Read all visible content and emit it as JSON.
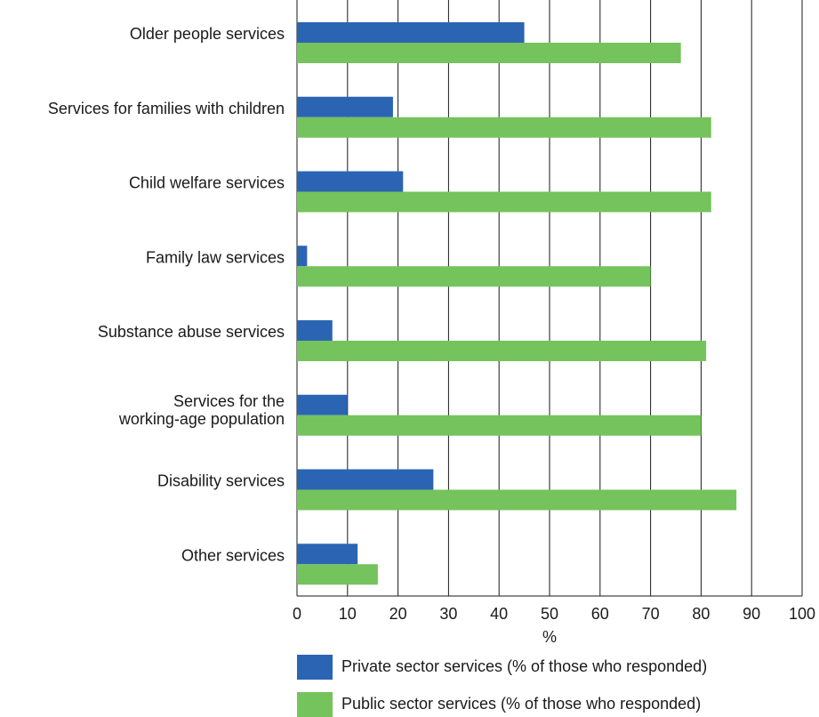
{
  "chart_data": {
    "type": "bar",
    "orientation": "horizontal",
    "categories": [
      "Older people services",
      "Services for families with children",
      "Child welfare services",
      "Family law services",
      "Substance abuse services",
      "Services for the working-age population",
      "Disability services",
      "Other services"
    ],
    "category_lines": [
      [
        "Older people services"
      ],
      [
        "Services for families with children"
      ],
      [
        "Child welfare services"
      ],
      [
        "Family law services"
      ],
      [
        "Substance abuse services"
      ],
      [
        "Services for the",
        "working-age population"
      ],
      [
        "Disability services"
      ],
      [
        "Other services"
      ]
    ],
    "series": [
      {
        "name": "Private sector services (% of those who responded)",
        "color": "#2b64b3",
        "values": [
          45,
          19,
          21,
          2,
          7,
          10,
          27,
          12
        ]
      },
      {
        "name": "Public sector services (% of those who responded)",
        "color": "#74c35c",
        "values": [
          76,
          82,
          82,
          70,
          81,
          80,
          87,
          16
        ]
      }
    ],
    "xlabel": "%",
    "xlim": [
      0,
      100
    ],
    "xticks": [
      0,
      10,
      20,
      30,
      40,
      50,
      60,
      70,
      80,
      90,
      100
    ],
    "grid": true,
    "legend_position": "bottom"
  }
}
